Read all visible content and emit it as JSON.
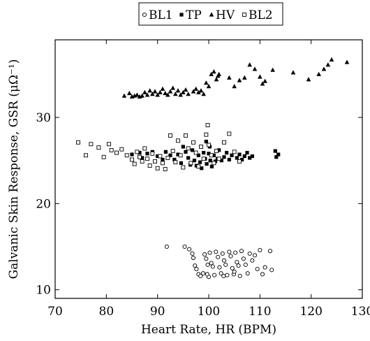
{
  "chart_data": {
    "type": "scatter",
    "xlabel": "Heart Rate, HR (BPM)",
    "ylabel": "Galvanic Skin Response, GSR (μΩ⁻¹)",
    "xlim": [
      70,
      130
    ],
    "ylim": [
      9,
      39
    ],
    "xticks": [
      70,
      80,
      90,
      100,
      110,
      120,
      130
    ],
    "yticks": [
      10,
      20,
      30
    ],
    "grid": false,
    "legend_position": "top-center",
    "series": [
      {
        "name": "BL1",
        "marker": "open-circle",
        "points": [
          [
            91.8,
            15.0
          ],
          [
            95.3,
            15.0
          ],
          [
            96.2,
            14.7
          ],
          [
            96.8,
            14.2
          ],
          [
            97.0,
            13.7
          ],
          [
            97.3,
            12.8
          ],
          [
            97.6,
            12.4
          ],
          [
            98.0,
            11.8
          ],
          [
            98.4,
            11.6
          ],
          [
            98.9,
            11.9
          ],
          [
            99.2,
            14.1
          ],
          [
            99.5,
            13.6
          ],
          [
            99.8,
            12.9
          ],
          [
            100.2,
            14.3
          ],
          [
            100.5,
            13.1
          ],
          [
            100.8,
            12.7
          ],
          [
            101.1,
            11.7
          ],
          [
            101.4,
            14.4
          ],
          [
            101.8,
            13.8
          ],
          [
            102.1,
            12.6
          ],
          [
            102.4,
            11.9
          ],
          [
            102.7,
            14.2
          ],
          [
            103.0,
            13.4
          ],
          [
            103.3,
            12.9
          ],
          [
            103.6,
            11.7
          ],
          [
            104.0,
            14.4
          ],
          [
            104.3,
            13.9
          ],
          [
            104.6,
            12.5
          ],
          [
            104.9,
            11.8
          ],
          [
            105.2,
            14.3
          ],
          [
            105.5,
            13.2
          ],
          [
            105.8,
            12.8
          ],
          [
            106.1,
            11.6
          ],
          [
            106.4,
            14.5
          ],
          [
            106.8,
            13.6
          ],
          [
            107.2,
            12.9
          ],
          [
            107.6,
            11.9
          ],
          [
            108.0,
            14.2
          ],
          [
            108.5,
            13.4
          ],
          [
            109.0,
            14.0
          ],
          [
            109.5,
            12.4
          ],
          [
            110.0,
            14.6
          ],
          [
            110.5,
            11.8
          ],
          [
            111.0,
            12.6
          ],
          [
            112.0,
            14.5
          ],
          [
            112.3,
            12.3
          ],
          [
            100.0,
            11.5
          ],
          [
            102.9,
            11.6
          ],
          [
            105.0,
            12.1
          ],
          [
            99.7,
            11.8
          ]
        ]
      },
      {
        "name": "TP",
        "marker": "filled-square",
        "points": [
          [
            85.0,
            25.7
          ],
          [
            86.5,
            25.9
          ],
          [
            87.0,
            25.3
          ],
          [
            88.0,
            25.8
          ],
          [
            89.0,
            26.0
          ],
          [
            90.0,
            25.5
          ],
          [
            91.0,
            25.1
          ],
          [
            91.6,
            26.0
          ],
          [
            92.5,
            25.6
          ],
          [
            93.3,
            25.1
          ],
          [
            94.0,
            25.7
          ],
          [
            94.6,
            24.7
          ],
          [
            95.0,
            26.6
          ],
          [
            95.5,
            26.0
          ],
          [
            96.0,
            25.3
          ],
          [
            96.4,
            24.5
          ],
          [
            96.8,
            26.2
          ],
          [
            97.2,
            25.0
          ],
          [
            97.6,
            24.4
          ],
          [
            98.0,
            25.6
          ],
          [
            98.3,
            24.8
          ],
          [
            98.6,
            24.1
          ],
          [
            99.0,
            25.9
          ],
          [
            99.3,
            25.2
          ],
          [
            99.6,
            24.6
          ],
          [
            100.0,
            25.8
          ],
          [
            100.3,
            25.0
          ],
          [
            100.6,
            24.3
          ],
          [
            101.0,
            25.6
          ],
          [
            101.3,
            24.9
          ],
          [
            101.7,
            25.2
          ],
          [
            102.0,
            26.2
          ],
          [
            102.5,
            25.0
          ],
          [
            103.0,
            25.4
          ],
          [
            103.5,
            25.9
          ],
          [
            104.0,
            25.1
          ],
          [
            104.5,
            25.6
          ],
          [
            105.0,
            26.0
          ],
          [
            105.5,
            25.3
          ],
          [
            106.0,
            25.7
          ],
          [
            106.5,
            25.1
          ],
          [
            107.0,
            25.5
          ],
          [
            107.5,
            25.9
          ],
          [
            108.0,
            25.3
          ],
          [
            108.5,
            25.5
          ],
          [
            113.0,
            26.1
          ],
          [
            113.2,
            25.4
          ],
          [
            113.6,
            25.7
          ],
          [
            99.5,
            27.2
          ],
          [
            100.2,
            26.6
          ]
        ]
      },
      {
        "name": "HV",
        "marker": "filled-triangle",
        "points": [
          [
            83.5,
            32.5
          ],
          [
            84.5,
            32.8
          ],
          [
            85.0,
            32.4
          ],
          [
            85.5,
            32.5
          ],
          [
            86.0,
            32.6
          ],
          [
            86.5,
            32.4
          ],
          [
            87.0,
            32.5
          ],
          [
            87.5,
            32.9
          ],
          [
            88.0,
            32.6
          ],
          [
            88.5,
            33.1
          ],
          [
            89.0,
            32.7
          ],
          [
            89.5,
            33.0
          ],
          [
            90.0,
            32.6
          ],
          [
            90.5,
            32.9
          ],
          [
            91.0,
            33.3
          ],
          [
            91.5,
            32.8
          ],
          [
            92.0,
            32.6
          ],
          [
            92.5,
            33.0
          ],
          [
            93.0,
            33.4
          ],
          [
            93.5,
            32.7
          ],
          [
            94.0,
            33.1
          ],
          [
            94.5,
            32.6
          ],
          [
            95.0,
            32.9
          ],
          [
            95.5,
            33.2
          ],
          [
            96.0,
            32.7
          ],
          [
            97.0,
            33.0
          ],
          [
            97.5,
            33.3
          ],
          [
            98.0,
            32.9
          ],
          [
            98.5,
            33.1
          ],
          [
            99.0,
            32.7
          ],
          [
            99.5,
            34.0
          ],
          [
            100.0,
            33.6
          ],
          [
            100.5,
            35.0
          ],
          [
            101.0,
            35.3
          ],
          [
            101.5,
            34.4
          ],
          [
            102.0,
            35.0
          ],
          [
            104.0,
            34.6
          ],
          [
            105.0,
            33.6
          ],
          [
            106.0,
            34.3
          ],
          [
            107.0,
            34.6
          ],
          [
            108.0,
            36.1
          ],
          [
            109.0,
            35.6
          ],
          [
            110.0,
            34.7
          ],
          [
            110.5,
            33.9
          ],
          [
            111.0,
            34.2
          ],
          [
            112.5,
            35.5
          ],
          [
            116.5,
            35.2
          ],
          [
            119.5,
            34.4
          ],
          [
            121.5,
            35.0
          ],
          [
            122.5,
            35.6
          ],
          [
            123.3,
            36.1
          ],
          [
            124.0,
            36.7
          ],
          [
            127.0,
            36.4
          ],
          [
            101.8,
            34.8
          ]
        ]
      },
      {
        "name": "BL2",
        "marker": "open-square",
        "points": [
          [
            74.5,
            27.1
          ],
          [
            76.0,
            25.6
          ],
          [
            77.0,
            26.9
          ],
          [
            78.5,
            26.5
          ],
          [
            79.5,
            25.4
          ],
          [
            80.5,
            26.9
          ],
          [
            81.0,
            26.2
          ],
          [
            82.0,
            25.9
          ],
          [
            83.0,
            26.3
          ],
          [
            84.0,
            25.6
          ],
          [
            85.0,
            25.1
          ],
          [
            85.5,
            24.6
          ],
          [
            86.0,
            26.0
          ],
          [
            86.5,
            25.4
          ],
          [
            87.0,
            24.9
          ],
          [
            87.5,
            26.4
          ],
          [
            88.0,
            25.2
          ],
          [
            88.5,
            24.4
          ],
          [
            89.0,
            25.8
          ],
          [
            89.5,
            24.9
          ],
          [
            90.0,
            24.1
          ],
          [
            90.5,
            25.5
          ],
          [
            91.0,
            24.7
          ],
          [
            91.5,
            24.0
          ],
          [
            92.0,
            25.3
          ],
          [
            92.5,
            27.9
          ],
          [
            93.0,
            26.1
          ],
          [
            93.5,
            24.8
          ],
          [
            94.0,
            27.3
          ],
          [
            94.5,
            25.6
          ],
          [
            95.0,
            24.2
          ],
          [
            95.5,
            27.9
          ],
          [
            96.0,
            26.4
          ],
          [
            96.5,
            24.7
          ],
          [
            97.0,
            27.1
          ],
          [
            97.5,
            25.9
          ],
          [
            98.0,
            24.3
          ],
          [
            98.5,
            26.6
          ],
          [
            99.0,
            25.2
          ],
          [
            99.5,
            28.0
          ],
          [
            99.8,
            29.1
          ],
          [
            100.0,
            26.8
          ],
          [
            100.5,
            25.6
          ],
          [
            101.0,
            24.7
          ],
          [
            101.5,
            26.1
          ],
          [
            102.0,
            25.2
          ],
          [
            103.0,
            27.1
          ],
          [
            104.0,
            28.1
          ],
          [
            105.0,
            26.0
          ],
          [
            106.0,
            24.9
          ]
        ]
      }
    ]
  }
}
